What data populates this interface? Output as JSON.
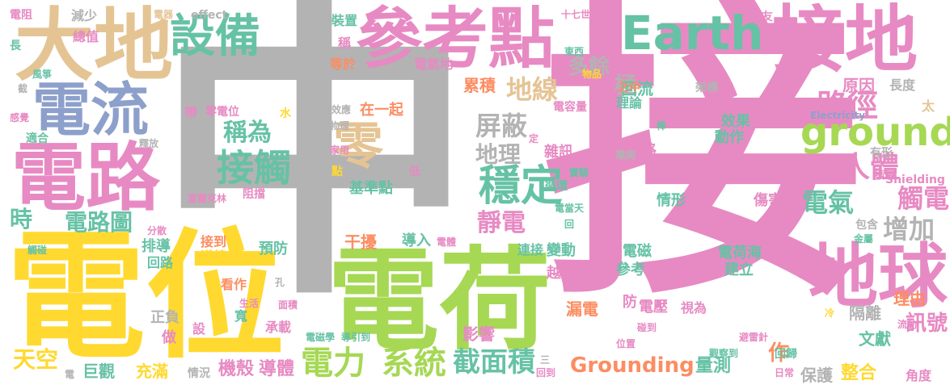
{
  "colors": {
    "gray": "#b3b3b3",
    "pink": "#e78ac3",
    "green": "#a6d854",
    "yellow": "#ffd92f",
    "tan": "#e5c494",
    "teal": "#66c2a5",
    "orange": "#fc8d62",
    "blue": "#8da0cb"
  },
  "words": [
    {
      "text": "中",
      "color": "gray"
    },
    {
      "text": "接",
      "color": "pink"
    },
    {
      "text": "電位",
      "color": "yellow"
    },
    {
      "text": "電荷",
      "color": "green"
    },
    {
      "text": "大地",
      "color": "tan"
    },
    {
      "text": "參考點",
      "color": "pink"
    },
    {
      "text": "接地",
      "color": "pink"
    },
    {
      "text": "電路",
      "color": "pink"
    },
    {
      "text": "地球",
      "color": "pink"
    },
    {
      "text": "電流",
      "color": "blue"
    },
    {
      "text": "設備",
      "color": "teal"
    },
    {
      "text": "Earth",
      "color": "teal"
    },
    {
      "text": "ground",
      "color": "green"
    },
    {
      "text": "零",
      "color": "tan"
    },
    {
      "text": "接觸",
      "color": "teal"
    },
    {
      "text": "穩定",
      "color": "teal"
    },
    {
      "text": "系統",
      "color": "green"
    },
    {
      "text": "電力",
      "color": "green"
    },
    {
      "text": "截面積",
      "color": "teal"
    },
    {
      "text": "Grounding",
      "color": "orange"
    },
    {
      "text": "地線",
      "color": "tan"
    },
    {
      "text": "路徑",
      "color": "pink"
    },
    {
      "text": "人體",
      "color": "pink"
    },
    {
      "text": "觸電",
      "color": "pink"
    },
    {
      "text": "電氣",
      "color": "teal"
    },
    {
      "text": "增加",
      "color": "gray"
    },
    {
      "text": "訊號",
      "color": "pink"
    },
    {
      "text": "屏蔽",
      "color": "gray"
    },
    {
      "text": "地理",
      "color": "gray"
    },
    {
      "text": "靜電",
      "color": "pink"
    },
    {
      "text": "稱為",
      "color": "teal"
    },
    {
      "text": "電路圖",
      "color": "teal"
    },
    {
      "text": "天空",
      "color": "yellow"
    },
    {
      "text": "多餘",
      "color": "gray"
    },
    {
      "text": "極",
      "color": "gray"
    },
    {
      "text": "時",
      "color": "teal"
    },
    {
      "text": "作",
      "color": "orange"
    },
    {
      "text": "導體",
      "color": "pink"
    },
    {
      "text": "機殼",
      "color": "pink"
    },
    {
      "text": "巨觀",
      "color": "teal"
    },
    {
      "text": "充滿",
      "color": "yellow"
    },
    {
      "text": "保護",
      "color": "gray"
    },
    {
      "text": "整合",
      "color": "yellow"
    },
    {
      "text": "量測",
      "color": "teal"
    },
    {
      "text": "文獻",
      "color": "teal"
    },
    {
      "text": "隔離",
      "color": "gray"
    },
    {
      "text": "理由",
      "color": "orange"
    },
    {
      "text": "基準點",
      "color": "teal"
    },
    {
      "text": "在一起",
      "color": "orange"
    },
    {
      "text": "干擾",
      "color": "orange"
    },
    {
      "text": "導入",
      "color": "teal"
    },
    {
      "text": "影響",
      "color": "pink"
    },
    {
      "text": "累積",
      "color": "orange"
    },
    {
      "text": "回流",
      "color": "teal"
    },
    {
      "text": "原因",
      "color": "pink"
    },
    {
      "text": "效果",
      "color": "teal"
    },
    {
      "text": "動作",
      "color": "teal"
    },
    {
      "text": "雜訊",
      "color": "pink"
    },
    {
      "text": "情形",
      "color": "teal"
    },
    {
      "text": "傷害",
      "color": "pink"
    },
    {
      "text": "電磁",
      "color": "teal"
    },
    {
      "text": "參考",
      "color": "teal"
    },
    {
      "text": "建立",
      "color": "teal"
    },
    {
      "text": "電荷海",
      "color": "teal"
    },
    {
      "text": "電壓",
      "color": "pink"
    },
    {
      "text": "視為",
      "color": "pink"
    },
    {
      "text": "漏電",
      "color": "orange"
    },
    {
      "text": "連接",
      "color": "teal"
    },
    {
      "text": "變動",
      "color": "teal"
    },
    {
      "text": "預防",
      "color": "teal"
    },
    {
      "text": "排導",
      "color": "teal"
    },
    {
      "text": "回路",
      "color": "teal"
    },
    {
      "text": "接到",
      "color": "orange"
    },
    {
      "text": "導線",
      "color": "yellow"
    },
    {
      "text": "看作",
      "color": "orange"
    },
    {
      "text": "正負",
      "color": "gray"
    },
    {
      "text": "做",
      "color": "pink"
    },
    {
      "text": "承載",
      "color": "pink"
    },
    {
      "text": "情況",
      "color": "gray"
    },
    {
      "text": "電阻",
      "color": "pink"
    },
    {
      "text": "減少",
      "color": "gray"
    },
    {
      "text": "電器",
      "color": "tan"
    },
    {
      "text": "effect",
      "color": "gray"
    },
    {
      "text": "長",
      "color": "teal"
    },
    {
      "text": "總值",
      "color": "pink"
    },
    {
      "text": "十七世紀",
      "color": "pink"
    },
    {
      "text": "朋友",
      "color": "pink"
    },
    {
      "text": "東西",
      "color": "teal"
    },
    {
      "text": "裝置",
      "color": "teal"
    },
    {
      "text": "稱",
      "color": "pink"
    },
    {
      "text": "等於",
      "color": "orange"
    },
    {
      "text": "電氣地",
      "color": "pink"
    },
    {
      "text": "之中",
      "color": "orange"
    },
    {
      "text": "理論",
      "color": "teal"
    },
    {
      "text": "電容量",
      "color": "pink"
    },
    {
      "text": "架構",
      "color": "gray"
    },
    {
      "text": "物品",
      "color": "yellow"
    },
    {
      "text": "長度",
      "color": "gray"
    },
    {
      "text": "太",
      "color": "tan"
    },
    {
      "text": "Electricity",
      "color": "blue"
    },
    {
      "text": "有形",
      "color": "gray"
    },
    {
      "text": "插頭",
      "color": "pink"
    },
    {
      "text": "Shielding",
      "color": "pink"
    },
    {
      "text": "包含",
      "color": "gray"
    },
    {
      "text": "金屬",
      "color": "teal"
    },
    {
      "text": "流動",
      "color": "pink"
    },
    {
      "text": "冷",
      "color": "yellow"
    },
    {
      "text": "避雷針",
      "color": "pink"
    },
    {
      "text": "日常",
      "color": "pink"
    },
    {
      "text": "回歸",
      "color": "teal"
    },
    {
      "text": "觀察到",
      "color": "teal"
    },
    {
      "text": "角度",
      "color": "pink"
    },
    {
      "text": "回到",
      "color": "pink"
    },
    {
      "text": "電磁學",
      "color": "teal"
    },
    {
      "text": "導引到",
      "color": "teal"
    },
    {
      "text": "生活",
      "color": "pink"
    },
    {
      "text": "面積",
      "color": "pink"
    },
    {
      "text": "孔",
      "color": "gray"
    },
    {
      "text": "寬",
      "color": "teal"
    },
    {
      "text": "設",
      "color": "pink"
    },
    {
      "text": "防",
      "color": "pink"
    },
    {
      "text": "越",
      "color": "pink"
    },
    {
      "text": "路",
      "color": "pink"
    },
    {
      "text": "碰到",
      "color": "pink"
    },
    {
      "text": "位置",
      "color": "pink"
    },
    {
      "text": "棒",
      "color": "teal"
    },
    {
      "text": "離開",
      "color": "gray"
    },
    {
      "text": "實驗",
      "color": "teal"
    },
    {
      "text": "電當天",
      "color": "teal"
    },
    {
      "text": "循環",
      "color": "teal"
    },
    {
      "text": "回",
      "color": "teal"
    },
    {
      "text": "定",
      "color": "pink"
    },
    {
      "text": "低",
      "color": "pink"
    },
    {
      "text": "點",
      "color": "yellow"
    },
    {
      "text": "阻擋",
      "color": "pink"
    },
    {
      "text": "富蘭克林",
      "color": "pink"
    },
    {
      "text": "家用",
      "color": "pink"
    },
    {
      "text": "物理",
      "color": "gray"
    },
    {
      "text": "效應",
      "color": "gray"
    },
    {
      "text": "帶",
      "color": "pink"
    },
    {
      "text": "零電位",
      "color": "pink"
    },
    {
      "text": "水",
      "color": "yellow"
    },
    {
      "text": "感覺",
      "color": "pink"
    },
    {
      "text": "適合",
      "color": "teal"
    },
    {
      "text": "釋放",
      "color": "gray"
    },
    {
      "text": "截",
      "color": "gray"
    },
    {
      "text": "風箏",
      "color": "teal"
    },
    {
      "text": "觸碰",
      "color": "teal"
    },
    {
      "text": "分散",
      "color": "pink"
    },
    {
      "text": "電",
      "color": "gray"
    },
    {
      "text": "三",
      "color": "gray"
    },
    {
      "text": "電體",
      "color": "pink"
    }
  ]
}
